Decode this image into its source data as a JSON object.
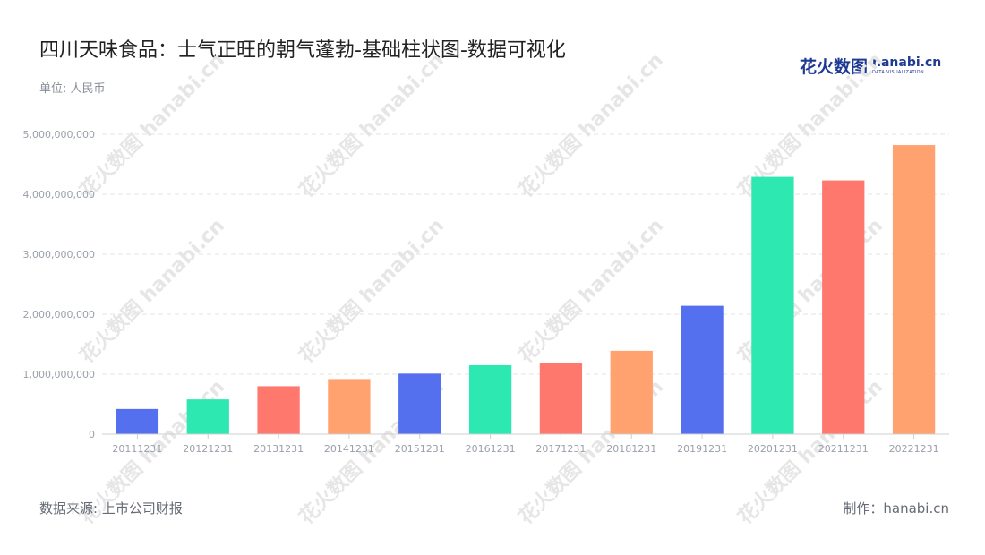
{
  "header": {
    "title": "四川天味食品：士气正旺的朝气蓬勃-基础柱状图-数据可视化",
    "unit": "单位: 人民币"
  },
  "logo": {
    "cn": "花火数图",
    "en": "hanabi.cn",
    "sub": "DATA VISUALIZATION"
  },
  "watermark_text": "花火数图 hanabi.cn",
  "footer": {
    "source": "数据来源: 上市公司财报",
    "credit": "制作：hanabi.cn"
  },
  "colors": {
    "palette": [
      "#5470ee",
      "#2de8b0",
      "#ff786e",
      "#ffa26f"
    ],
    "grid": "#e3e3e3",
    "axis_text": "#9aa0aa"
  },
  "chart_data": {
    "type": "bar",
    "categories": [
      "20111231",
      "20121231",
      "20131231",
      "20141231",
      "20151231",
      "20161231",
      "20171231",
      "20181231",
      "20191231",
      "20201231",
      "20211231",
      "20221231"
    ],
    "values": [
      420000000,
      580000000,
      800000000,
      920000000,
      1010000000,
      1150000000,
      1190000000,
      1390000000,
      2140000000,
      4290000000,
      4230000000,
      4820000000
    ],
    "yticks": [
      0,
      1000000000,
      2000000000,
      3000000000,
      4000000000,
      5000000000
    ],
    "ylim": [
      0,
      5000000000
    ],
    "grid": true,
    "legend": "none"
  }
}
